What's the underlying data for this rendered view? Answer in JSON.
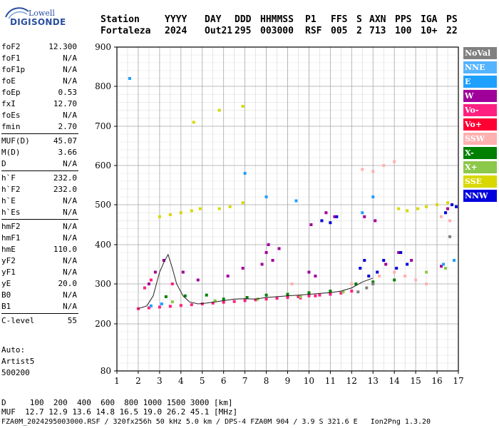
{
  "logo": {
    "brand_top": "Lowell",
    "brand_main": "DIGISONDE"
  },
  "header": {
    "labels": [
      "Station",
      "YYYY",
      "DAY",
      "DDD",
      "HHMMSS",
      "P1",
      "FFS",
      "S",
      "AXN",
      "PPS",
      "IGA",
      "PS"
    ],
    "values": [
      "Fortaleza",
      "2024",
      "Out21",
      "295",
      "003000",
      "RSF",
      "005",
      "2",
      "713",
      "100",
      "10+",
      "22"
    ]
  },
  "params": [
    {
      "label": "foF2",
      "value": "12.300"
    },
    {
      "label": "foF1",
      "value": "N/A"
    },
    {
      "label": "foF1p",
      "value": "N/A"
    },
    {
      "label": "foE",
      "value": "N/A"
    },
    {
      "label": "foEp",
      "value": "0.53"
    },
    {
      "label": "fxI",
      "value": "12.70"
    },
    {
      "label": "foEs",
      "value": "N/A"
    },
    {
      "label": "fmin",
      "value": "2.70"
    },
    {
      "label": "MUF(D)",
      "value": "45.07"
    },
    {
      "label": "M(D)",
      "value": "3.66"
    },
    {
      "label": "D",
      "value": "N/A"
    },
    {
      "label": "h`F",
      "value": "232.0"
    },
    {
      "label": "h`F2",
      "value": "232.0"
    },
    {
      "label": "h`E",
      "value": "N/A"
    },
    {
      "label": "h`Es",
      "value": "N/A"
    },
    {
      "label": "hmF2",
      "value": "N/A"
    },
    {
      "label": "hmF1",
      "value": "N/A"
    },
    {
      "label": "hmE",
      "value": "110.0"
    },
    {
      "label": "yF2",
      "value": "N/A"
    },
    {
      "label": "yF1",
      "value": "N/A"
    },
    {
      "label": "yE",
      "value": "20.0"
    },
    {
      "label": "B0",
      "value": "N/A"
    },
    {
      "label": "B1",
      "value": "N/A"
    },
    {
      "label": "C-level",
      "value": "55"
    }
  ],
  "auto": {
    "label": "Auto:",
    "software": "Artist5",
    "version": "500200"
  },
  "footer": {
    "distance_line": "D     100  200  400  600  800 1000 1500 3000 [km]",
    "muf_line": "MUF  12.7 12.9 13.6 14.8 16.5 19.0 26.2 45.1 [MHz]",
    "info_line": "FZA0M_2024295003000.RSF / 320fx256h 50 kHz 5.0 km / DPS-4 FZA0M 904 / 3.9 S 321.6 E   Ion2Png 1.3.20"
  },
  "legend": [
    {
      "label": "NoVal",
      "color": "#808080"
    },
    {
      "label": "NNE",
      "color": "#55b4ff"
    },
    {
      "label": "E",
      "color": "#1ea0ff"
    },
    {
      "label": "W",
      "color": "#a0009a"
    },
    {
      "label": "Vo-",
      "color": "#ff2080"
    },
    {
      "label": "Vo+",
      "color": "#ff0033"
    },
    {
      "label": "SSW",
      "color": "#ffb0b0"
    },
    {
      "label": "X-",
      "color": "#008000"
    },
    {
      "label": "X+",
      "color": "#8cc84a"
    },
    {
      "label": "SSE",
      "color": "#d8d800"
    },
    {
      "label": "NNW",
      "color": "#0000dd"
    }
  ],
  "chart_data": {
    "type": "scatter",
    "title": "",
    "xlabel": "",
    "ylabel": "",
    "xlim": [
      1,
      17
    ],
    "ylim": [
      80,
      900
    ],
    "x_ticks": [
      "1",
      "2",
      "3",
      "4",
      "5",
      "6",
      "7",
      "8",
      "9",
      "10",
      "11",
      "12",
      "13",
      "14",
      "15",
      "16",
      "17"
    ],
    "y_ticks": [
      "80",
      "200",
      "300",
      "400",
      "500",
      "600",
      "700",
      "800",
      "900"
    ],
    "grid": true,
    "series": [
      {
        "name": "Vo-",
        "points": [
          [
            2.0,
            238
          ],
          [
            2.5,
            240
          ],
          [
            3.0,
            242
          ],
          [
            3.5,
            244
          ],
          [
            4.0,
            246
          ],
          [
            4.5,
            248
          ],
          [
            5.0,
            250
          ],
          [
            5.5,
            252
          ],
          [
            6.0,
            254
          ],
          [
            6.5,
            256
          ],
          [
            7.0,
            258
          ],
          [
            7.5,
            260
          ],
          [
            8.0,
            262
          ],
          [
            8.5,
            264
          ],
          [
            9.0,
            266
          ],
          [
            9.5,
            268
          ],
          [
            10.0,
            270
          ],
          [
            10.5,
            272
          ],
          [
            11.0,
            274
          ],
          [
            11.5,
            277
          ],
          [
            12.0,
            282
          ],
          [
            2.3,
            290
          ],
          [
            2.6,
            310
          ],
          [
            3.6,
            300
          ],
          [
            9.6,
            265
          ],
          [
            10.3,
            270
          ]
        ]
      },
      {
        "name": "W",
        "points": [
          [
            2.5,
            300
          ],
          [
            2.8,
            330
          ],
          [
            3.2,
            360
          ],
          [
            4.1,
            330
          ],
          [
            4.8,
            310
          ],
          [
            6.2,
            320
          ],
          [
            6.9,
            340
          ],
          [
            7.8,
            350
          ],
          [
            8.0,
            380
          ],
          [
            8.1,
            400
          ],
          [
            8.3,
            360
          ],
          [
            8.6,
            390
          ],
          [
            10.0,
            330
          ],
          [
            10.3,
            320
          ],
          [
            10.1,
            450
          ],
          [
            10.8,
            480
          ],
          [
            11.2,
            470
          ],
          [
            12.6,
            470
          ],
          [
            13.1,
            460
          ],
          [
            13.6,
            350
          ],
          [
            14.2,
            380
          ],
          [
            14.8,
            360
          ],
          [
            16.2,
            345
          ],
          [
            16.5,
            490
          ]
        ]
      },
      {
        "name": "NNW",
        "points": [
          [
            10.6,
            460
          ],
          [
            11.0,
            455
          ],
          [
            11.3,
            470
          ],
          [
            12.4,
            340
          ],
          [
            12.6,
            360
          ],
          [
            12.8,
            320
          ],
          [
            13.2,
            330
          ],
          [
            13.5,
            360
          ],
          [
            14.1,
            340
          ],
          [
            14.3,
            380
          ],
          [
            14.6,
            350
          ],
          [
            16.4,
            480
          ],
          [
            16.7,
            500
          ],
          [
            16.9,
            495
          ]
        ]
      },
      {
        "name": "E",
        "points": [
          [
            1.6,
            820
          ],
          [
            7.0,
            580
          ],
          [
            8.0,
            520
          ],
          [
            9.4,
            510
          ],
          [
            12.5,
            480
          ],
          [
            13.0,
            520
          ],
          [
            16.3,
            350
          ],
          [
            16.8,
            360
          ],
          [
            2.6,
            245
          ],
          [
            3.1,
            250
          ]
        ]
      },
      {
        "name": "SSW",
        "points": [
          [
            12.5,
            590
          ],
          [
            13.0,
            585
          ],
          [
            13.5,
            600
          ],
          [
            14.0,
            610
          ],
          [
            12.0,
            300
          ],
          [
            13.3,
            320
          ],
          [
            14.0,
            330
          ],
          [
            14.5,
            320
          ],
          [
            15.0,
            310
          ],
          [
            15.5,
            300
          ],
          [
            16.2,
            470
          ],
          [
            16.6,
            460
          ],
          [
            9.2,
            300
          ]
        ]
      },
      {
        "name": "SSE",
        "points": [
          [
            3.0,
            470
          ],
          [
            3.5,
            475
          ],
          [
            4.0,
            480
          ],
          [
            4.5,
            485
          ],
          [
            4.9,
            490
          ],
          [
            5.8,
            490
          ],
          [
            6.3,
            495
          ],
          [
            6.9,
            505
          ],
          [
            14.2,
            490
          ],
          [
            14.6,
            485
          ],
          [
            15.1,
            490
          ],
          [
            15.5,
            495
          ],
          [
            16.0,
            500
          ],
          [
            16.5,
            505
          ],
          [
            5.8,
            740
          ],
          [
            6.9,
            750
          ],
          [
            4.6,
            710
          ]
        ]
      },
      {
        "name": "X-",
        "points": [
          [
            3.3,
            268
          ],
          [
            4.2,
            270
          ],
          [
            5.2,
            272
          ],
          [
            6.0,
            262
          ],
          [
            7.1,
            266
          ],
          [
            8.0,
            272
          ],
          [
            9.0,
            274
          ],
          [
            10.0,
            278
          ],
          [
            11.0,
            282
          ],
          [
            12.2,
            300
          ],
          [
            13.0,
            305
          ],
          [
            14.0,
            310
          ]
        ]
      },
      {
        "name": "X+",
        "points": [
          [
            3.6,
            255
          ],
          [
            5.6,
            258
          ],
          [
            7.6,
            262
          ],
          [
            9.6,
            268
          ],
          [
            11.6,
            280
          ],
          [
            15.5,
            330
          ],
          [
            16.4,
            340
          ]
        ]
      },
      {
        "name": "NoVal",
        "points": [
          [
            12.3,
            280
          ],
          [
            12.7,
            290
          ],
          [
            13.0,
            300
          ],
          [
            16.6,
            420
          ]
        ]
      }
    ],
    "trace_line": [
      [
        2.0,
        238
      ],
      [
        2.4,
        245
      ],
      [
        2.7,
        270
      ],
      [
        3.0,
        330
      ],
      [
        3.2,
        355
      ],
      [
        3.4,
        375
      ],
      [
        3.6,
        340
      ],
      [
        3.8,
        300
      ],
      [
        4.1,
        270
      ],
      [
        4.4,
        255
      ],
      [
        4.8,
        250
      ],
      [
        5.2,
        252
      ],
      [
        5.6,
        255
      ],
      [
        6.0,
        258
      ],
      [
        6.5,
        262
      ],
      [
        7.0,
        263
      ],
      [
        7.5,
        262
      ],
      [
        8.0,
        266
      ],
      [
        8.5,
        268
      ],
      [
        9.0,
        270
      ],
      [
        9.5,
        272
      ],
      [
        10.0,
        274
      ],
      [
        10.5,
        276
      ],
      [
        11.0,
        278
      ],
      [
        11.5,
        282
      ],
      [
        12.0,
        290
      ],
      [
        12.5,
        305
      ],
      [
        13.0,
        315
      ]
    ]
  }
}
